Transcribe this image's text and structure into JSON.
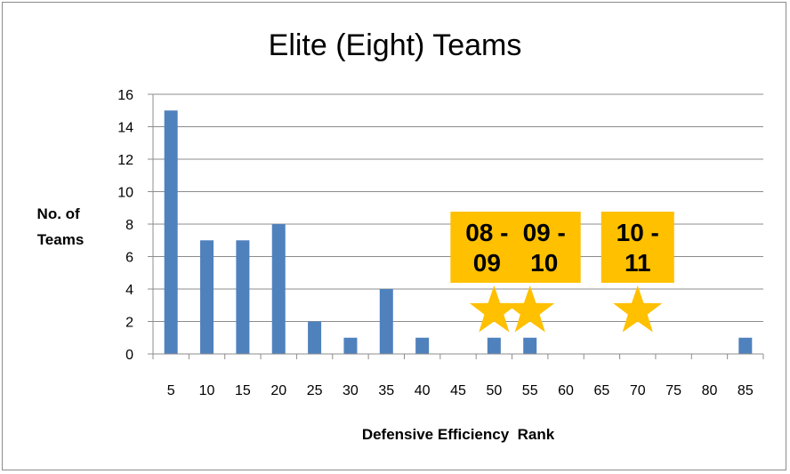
{
  "chart_data": {
    "type": "bar",
    "title": "Elite (Eight) Teams",
    "xlabel": "Defensive Efficiency  Rank",
    "ylabel_lines": [
      "No. of",
      "Teams"
    ],
    "categories": [
      "5",
      "10",
      "15",
      "20",
      "25",
      "30",
      "35",
      "40",
      "45",
      "50",
      "55",
      "60",
      "65",
      "70",
      "75",
      "80",
      "85"
    ],
    "values": [
      15,
      7,
      7,
      8,
      2,
      1,
      4,
      1,
      0,
      1,
      1,
      0,
      0,
      0,
      0,
      0,
      1
    ],
    "ylim": [
      0,
      16
    ],
    "yticks": [
      "0",
      "2",
      "4",
      "6",
      "8",
      "10",
      "12",
      "14",
      "16"
    ],
    "grid": true,
    "bar_color": "#4f81bd",
    "annotations": [
      {
        "lines": [
          "08 -",
          "09"
        ],
        "rank": 50,
        "box_color": "#ffc000",
        "star_color": "#ffc000"
      },
      {
        "lines": [
          "09 -",
          "10"
        ],
        "rank": 55,
        "box_color": "#ffc000",
        "star_color": "#ffc000"
      },
      {
        "lines": [
          "10 -",
          "11"
        ],
        "rank": 70,
        "box_color": "#ffc000",
        "star_color": "#ffc000"
      }
    ]
  }
}
